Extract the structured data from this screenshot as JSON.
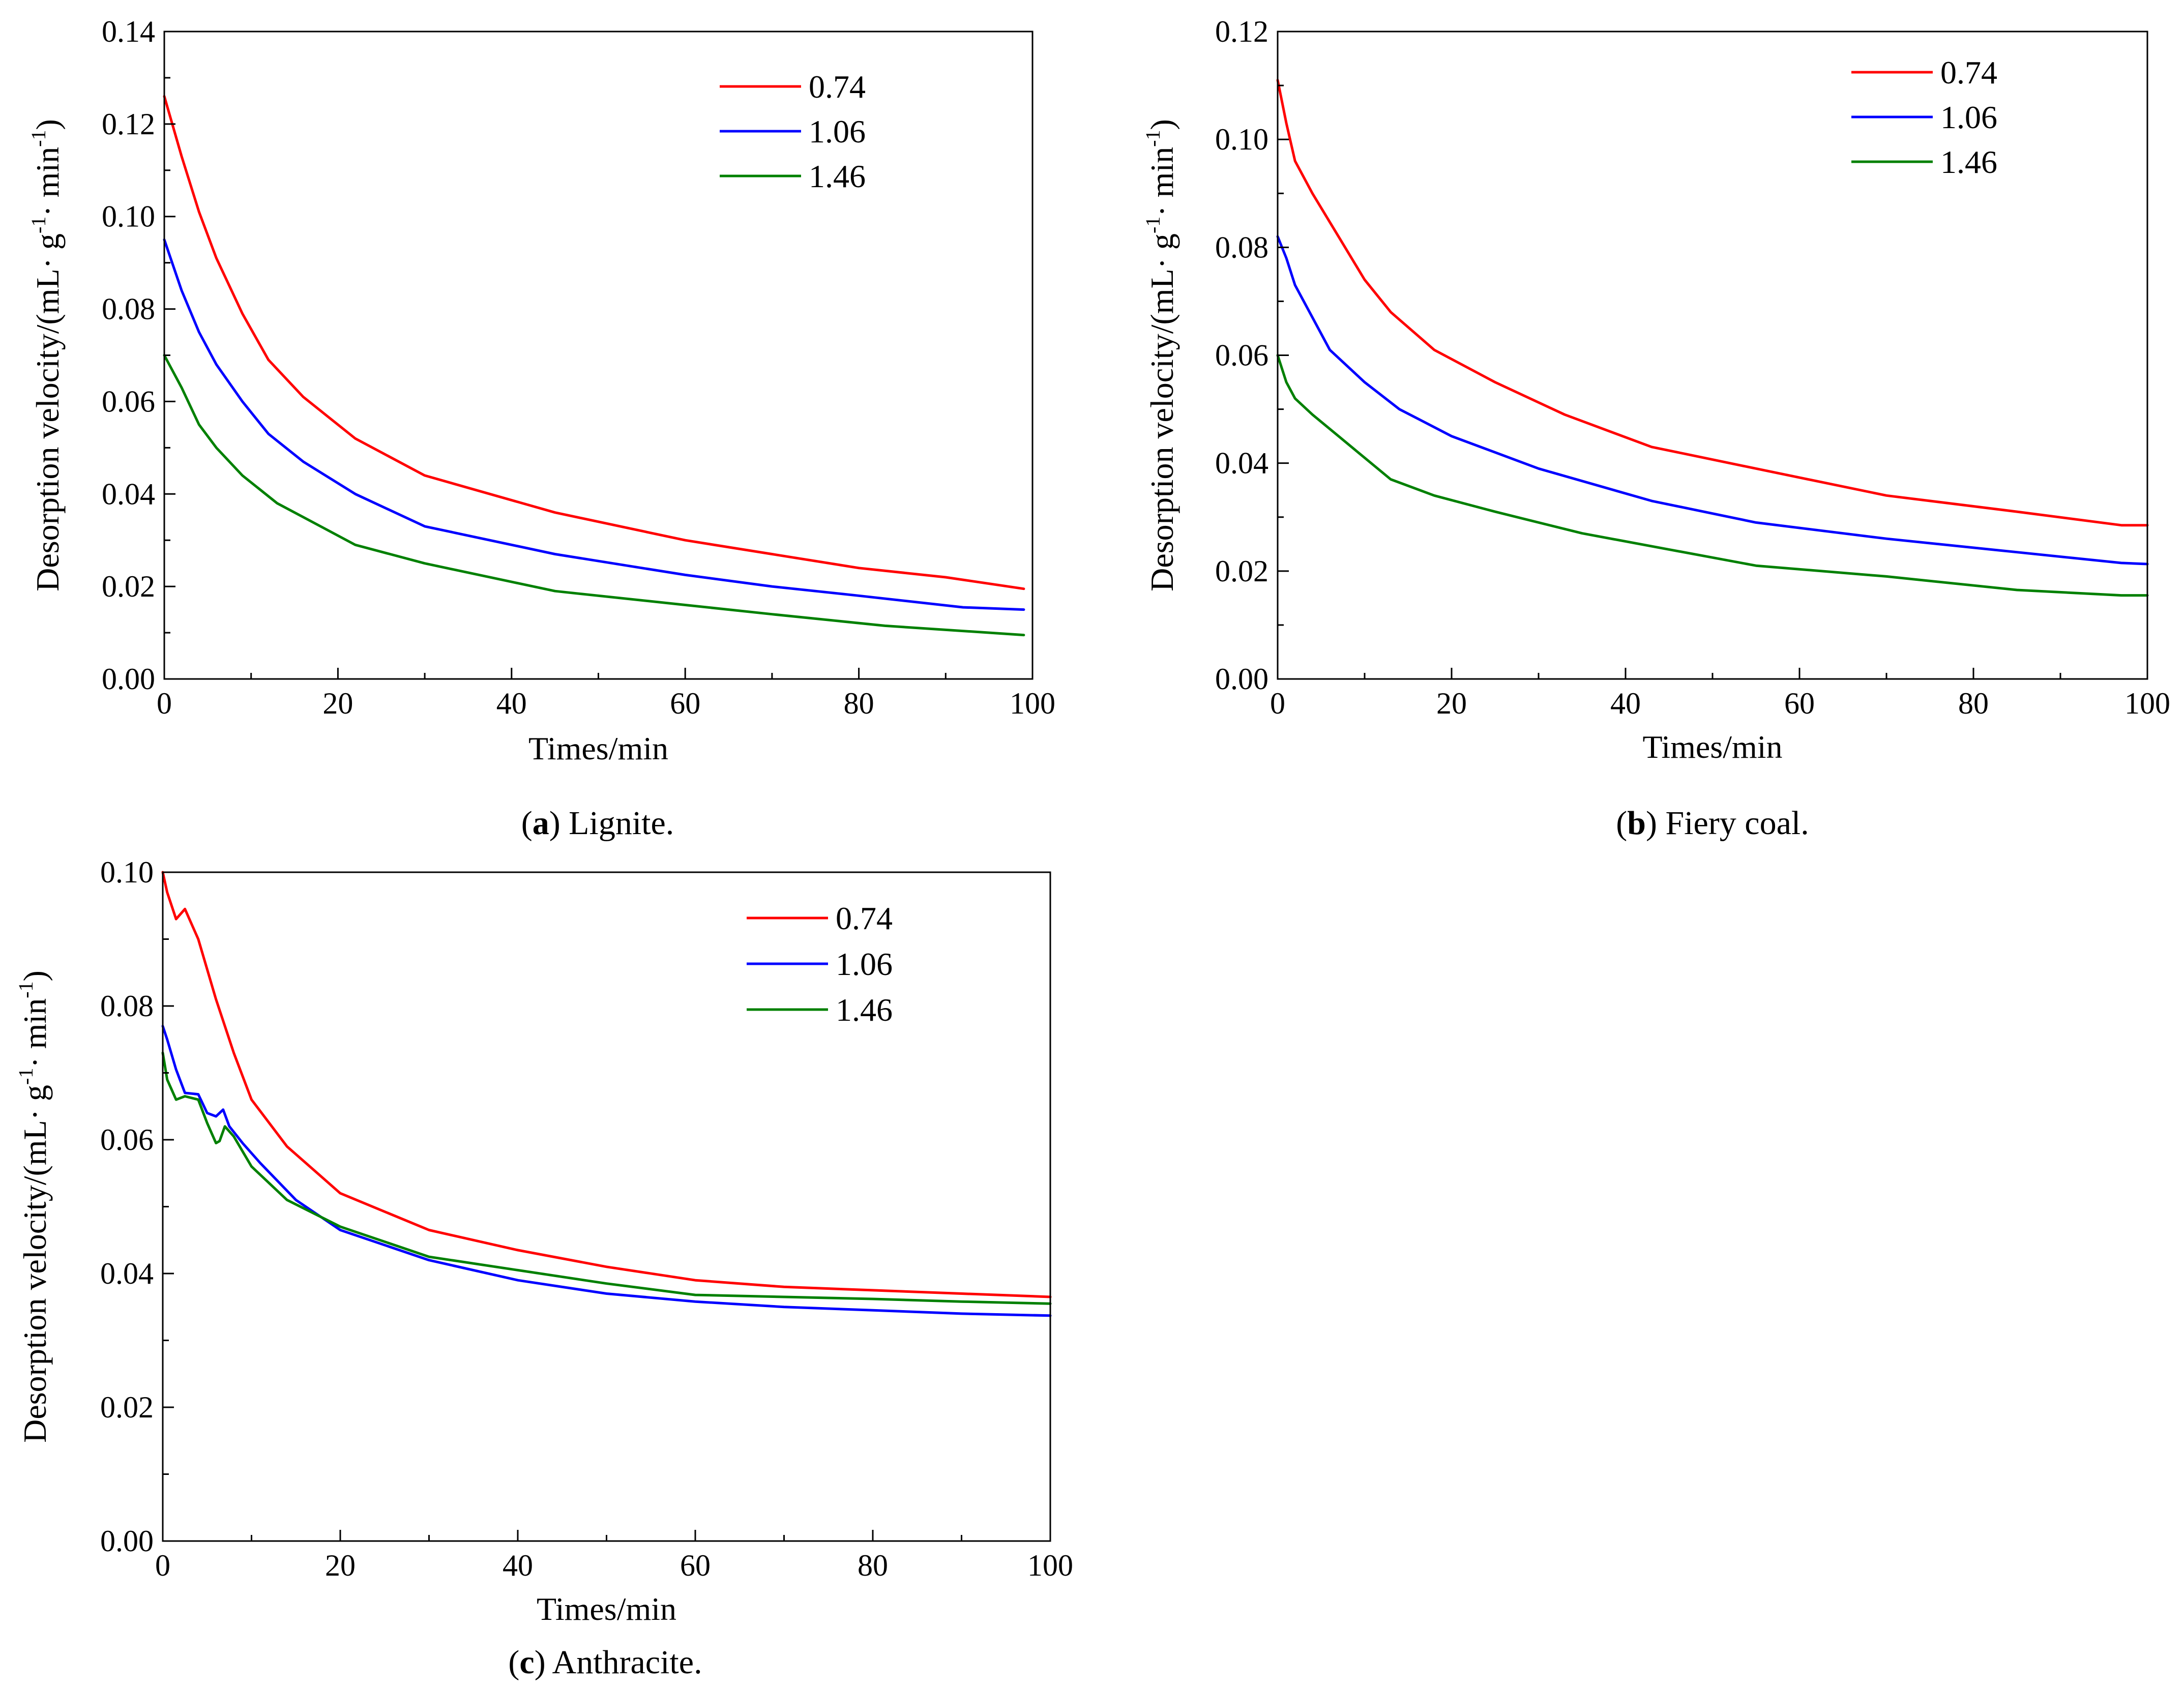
{
  "chart_data": [
    {
      "type": "line",
      "panel": "a",
      "caption_letter": "a",
      "caption_text": " Lignite.",
      "xlabel": "Times/min",
      "ylabel": "Desorption velocity/(mL· g",
      "ylabel_sup1": "-1",
      "ylabel_mid": "· min",
      "ylabel_sup2": "-1",
      "ylabel_end": ")",
      "xlim": [
        0,
        100
      ],
      "ylim": [
        0,
        0.14
      ],
      "xticks": [
        "0",
        "20",
        "40",
        "60",
        "80",
        "100"
      ],
      "yticks": [
        "0.00",
        "0.02",
        "0.04",
        "0.06",
        "0.08",
        "0.10",
        "0.12",
        "0.14"
      ],
      "legend_position": "top-right",
      "grid": false,
      "series": [
        {
          "name": "0.74",
          "color": "#ff0000",
          "x": [
            0,
            2,
            4,
            6,
            9,
            12,
            16,
            22,
            30,
            45,
            60,
            70,
            80,
            90,
            99
          ],
          "y": [
            0.126,
            0.113,
            0.101,
            0.091,
            0.079,
            0.069,
            0.061,
            0.052,
            0.044,
            0.036,
            0.03,
            0.027,
            0.024,
            0.022,
            0.0195
          ]
        },
        {
          "name": "1.06",
          "color": "#0000ff",
          "x": [
            0,
            2,
            4,
            6,
            9,
            12,
            16,
            22,
            30,
            45,
            60,
            70,
            80,
            92,
            99
          ],
          "y": [
            0.095,
            0.084,
            0.075,
            0.068,
            0.06,
            0.053,
            0.047,
            0.04,
            0.033,
            0.027,
            0.0225,
            0.02,
            0.018,
            0.0155,
            0.015
          ]
        },
        {
          "name": "1.46",
          "color": "#008000",
          "x": [
            0,
            2,
            4,
            6,
            9,
            13,
            18,
            22,
            30,
            45,
            60,
            70,
            83,
            99
          ],
          "y": [
            0.07,
            0.063,
            0.055,
            0.05,
            0.044,
            0.038,
            0.033,
            0.029,
            0.025,
            0.019,
            0.016,
            0.014,
            0.0115,
            0.0095
          ]
        }
      ]
    },
    {
      "type": "line",
      "panel": "b",
      "caption_letter": "b",
      "caption_text": " Fiery coal.",
      "xlabel": "Times/min",
      "ylabel": "Desorption velocity/(mL· g",
      "ylabel_sup1": "-1",
      "ylabel_mid": "· min",
      "ylabel_sup2": "-1",
      "ylabel_end": ")",
      "xlim": [
        0,
        100
      ],
      "ylim": [
        0,
        0.12
      ],
      "xticks": [
        "0",
        "20",
        "40",
        "60",
        "80",
        "100"
      ],
      "yticks": [
        "0.00",
        "0.02",
        "0.04",
        "0.06",
        "0.08",
        "0.10",
        "0.12"
      ],
      "legend_position": "top-right",
      "grid": false,
      "series": [
        {
          "name": "0.74",
          "color": "#ff0000",
          "x": [
            0,
            1,
            2,
            4,
            7,
            10,
            13,
            18,
            25,
            33,
            43,
            55,
            70,
            85,
            97,
            100
          ],
          "y": [
            0.111,
            0.103,
            0.096,
            0.09,
            0.082,
            0.074,
            0.068,
            0.061,
            0.055,
            0.049,
            0.043,
            0.039,
            0.034,
            0.031,
            0.0285,
            0.0285
          ]
        },
        {
          "name": "1.06",
          "color": "#0000ff",
          "x": [
            0,
            1,
            2,
            4,
            6,
            10,
            14,
            20,
            30,
            43,
            55,
            70,
            85,
            97,
            100
          ],
          "y": [
            0.082,
            0.078,
            0.073,
            0.067,
            0.061,
            0.055,
            0.05,
            0.045,
            0.039,
            0.033,
            0.029,
            0.026,
            0.0235,
            0.0215,
            0.0213
          ]
        },
        {
          "name": "1.46",
          "color": "#008000",
          "x": [
            0,
            1,
            2,
            4,
            7,
            10,
            13,
            18,
            25,
            35,
            45,
            55,
            70,
            85,
            97,
            100
          ],
          "y": [
            0.06,
            0.055,
            0.052,
            0.049,
            0.045,
            0.041,
            0.037,
            0.034,
            0.031,
            0.027,
            0.024,
            0.021,
            0.019,
            0.0165,
            0.0155,
            0.0155
          ]
        }
      ]
    },
    {
      "type": "line",
      "panel": "c",
      "caption_letter": "c",
      "caption_text": " Anthracite.",
      "xlabel": "Times/min",
      "ylabel": "Desorption velocity/(mL· g",
      "ylabel_sup1": "-1",
      "ylabel_mid": "· min",
      "ylabel_sup2": "-1",
      "ylabel_end": ")",
      "xlim": [
        0,
        100
      ],
      "ylim": [
        0,
        0.1
      ],
      "xticks": [
        "0",
        "20",
        "40",
        "60",
        "80",
        "100"
      ],
      "yticks": [
        "0.00",
        "0.02",
        "0.04",
        "0.06",
        "0.08",
        "0.10"
      ],
      "legend_position": "top-right",
      "grid": false,
      "series": [
        {
          "name": "0.74",
          "color": "#ff0000",
          "x": [
            0,
            0.5,
            1.5,
            2.5,
            4,
            6,
            8,
            10,
            14,
            20,
            30,
            40,
            50,
            60,
            70,
            80,
            90,
            100
          ],
          "y": [
            0.1,
            0.097,
            0.093,
            0.0945,
            0.09,
            0.081,
            0.073,
            0.066,
            0.059,
            0.052,
            0.0465,
            0.0435,
            0.041,
            0.039,
            0.038,
            0.0375,
            0.037,
            0.0365
          ]
        },
        {
          "name": "1.06",
          "color": "#0000ff",
          "x": [
            0,
            0.5,
            1.5,
            2.5,
            4,
            5,
            6,
            6.8,
            7.5,
            9,
            11,
            15,
            20,
            30,
            40,
            50,
            60,
            70,
            80,
            90,
            100
          ],
          "y": [
            0.077,
            0.075,
            0.0705,
            0.067,
            0.0668,
            0.064,
            0.0635,
            0.0645,
            0.062,
            0.0595,
            0.0565,
            0.051,
            0.0465,
            0.042,
            0.039,
            0.037,
            0.0358,
            0.035,
            0.0345,
            0.034,
            0.0337
          ]
        },
        {
          "name": "1.46",
          "color": "#008000",
          "x": [
            0,
            0.5,
            1.5,
            2.5,
            4,
            5,
            6,
            6.4,
            7,
            8,
            10,
            14,
            20,
            30,
            40,
            50,
            60,
            70,
            80,
            90,
            100
          ],
          "y": [
            0.073,
            0.069,
            0.066,
            0.0665,
            0.066,
            0.0625,
            0.0595,
            0.0598,
            0.062,
            0.0605,
            0.056,
            0.051,
            0.047,
            0.0425,
            0.0405,
            0.0385,
            0.0368,
            0.0365,
            0.0362,
            0.0358,
            0.0355
          ]
        }
      ]
    }
  ]
}
